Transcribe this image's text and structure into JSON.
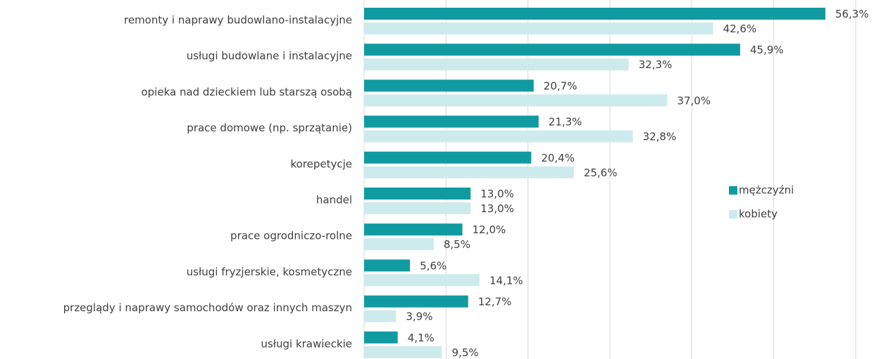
{
  "chart_data": {
    "type": "barh",
    "categories": [
      "remonty i naprawy budowlano-instalacyjne",
      "usługi budowlane i instalacyjne",
      "opieka nad dzieckiem lub starszą osobą",
      "prace domowe (np. sprzątanie)",
      "korepetycje",
      "handel",
      "prace ogrodniczo-rolne",
      "usługi fryzjerskie, kosmetyczne",
      "przeglądy i naprawy samochodów oraz innych maszyn",
      "usługi krawieckie"
    ],
    "series": [
      {
        "name": "mężczyźni",
        "color": "#119ba1",
        "values": [
          56.3,
          45.9,
          20.7,
          21.3,
          20.4,
          13.0,
          12.0,
          5.6,
          12.7,
          4.1
        ],
        "value_labels": [
          "56,3%",
          "45,9%",
          "20,7%",
          "21,3%",
          "20,4%",
          "13,0%",
          "12,0%",
          "5,6%",
          "12,7%",
          "4,1%"
        ]
      },
      {
        "name": "kobiety",
        "color": "#cdebed",
        "values": [
          42.6,
          32.3,
          37.0,
          32.8,
          25.6,
          13.0,
          8.5,
          14.1,
          3.9,
          9.5
        ],
        "value_labels": [
          "42,6%",
          "32,3%",
          "37,0%",
          "32,8%",
          "25,6%",
          "13,0%",
          "8,5%",
          "14,1%",
          "3,9%",
          "9,5%"
        ]
      }
    ],
    "xlim": [
      0,
      60
    ],
    "xticks": [
      0,
      10,
      20,
      30,
      40,
      50,
      60
    ],
    "grid": true,
    "legend": "right"
  }
}
